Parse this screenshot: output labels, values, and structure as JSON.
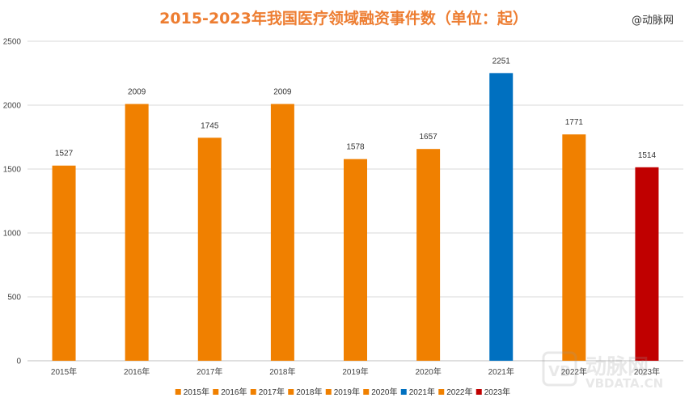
{
  "chart_data": {
    "type": "bar",
    "title": "2015-2023年我国医疗领域融资事件数（单位：起）",
    "categories": [
      "2015年",
      "2016年",
      "2017年",
      "2018年",
      "2019年",
      "2020年",
      "2021年",
      "2022年",
      "2023年"
    ],
    "values": [
      1527,
      2009,
      1745,
      2009,
      1578,
      1657,
      2251,
      1771,
      1514
    ],
    "colors": [
      "#F08000",
      "#F08000",
      "#F08000",
      "#F08000",
      "#F08000",
      "#F08000",
      "#0070C0",
      "#F08000",
      "#C00000"
    ],
    "ylim": [
      0,
      2500
    ],
    "yticks": [
      0,
      500,
      1000,
      1500,
      2000,
      2500
    ],
    "grid": true,
    "legend": "bottom",
    "xlabel": "",
    "ylabel": ""
  },
  "title_color": "#ED7D31",
  "brand_text": "@动脉网",
  "watermark": {
    "cn": "动脉网",
    "en": "VBDATA.CN",
    "logo": "VB"
  }
}
